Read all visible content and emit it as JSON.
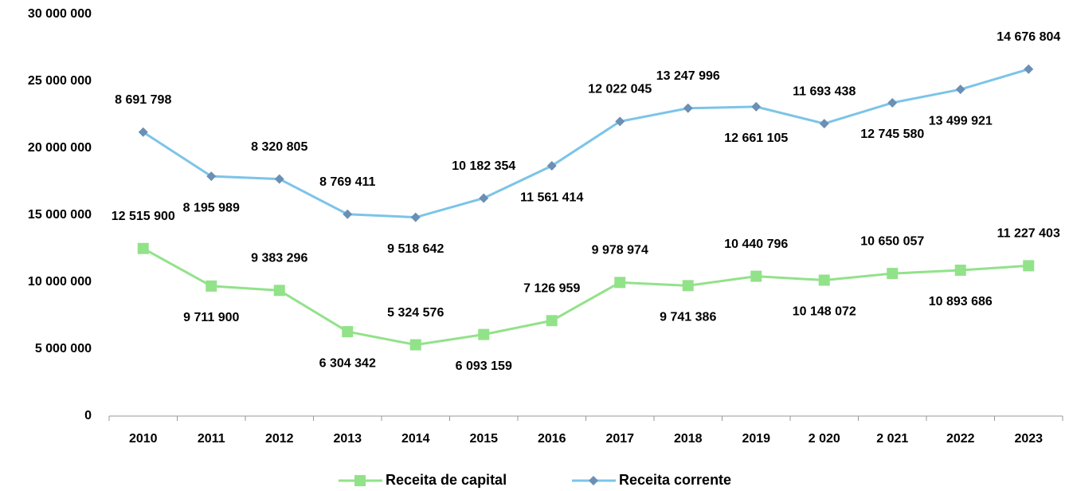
{
  "chart_data": {
    "type": "stacked_line",
    "categories": [
      "2010",
      "2011",
      "2012",
      "2013",
      "2014",
      "2015",
      "2016",
      "2017",
      "2018",
      "2019",
      "2 020",
      "2 021",
      "2022",
      "2023"
    ],
    "ylim": [
      0,
      30000000
    ],
    "yticks": [
      0,
      {
        "value": 5000000,
        "label": "5 000 000"
      },
      {
        "value": 10000000,
        "label": "10 000 000"
      },
      {
        "value": 15000000,
        "label": "15 000 000"
      },
      {
        "value": 20000000,
        "label": "20 000 000"
      },
      {
        "value": 25000000,
        "label": "25 000 000"
      },
      {
        "value": 30000000,
        "label": "30 000 000"
      }
    ],
    "grid": false,
    "legend": "bottom",
    "series": [
      {
        "name": "Receita de capital",
        "color": "#92e28a",
        "marker": "square",
        "values": [
          12515900,
          9711900,
          9383296,
          6304342,
          5324576,
          6093159,
          7126959,
          9978974,
          9741386,
          10440796,
          10148072,
          10650057,
          10893686,
          11227403
        ],
        "value_labels": [
          "12 515 900",
          "9 711 900",
          "9 383 296",
          "6 304 342",
          "5 324 576",
          "6 093 159",
          "7 126 959",
          "9 978 974",
          "9 741 386",
          "10 440 796",
          "10 148 072",
          "10 650 057",
          "10 893 686",
          "11 227 403"
        ]
      },
      {
        "name": "Receita corrente",
        "color": "#7cc4e8",
        "marker": "diamond",
        "values": [
          8691798,
          8195989,
          8320805,
          8769411,
          9518642,
          10182354,
          11561414,
          12022045,
          13247996,
          12661105,
          11693438,
          12745580,
          13499921,
          14676804
        ],
        "value_labels": [
          "8 691 798",
          "8 195 989",
          "8 320 805",
          "8 769 411",
          "9 518 642",
          "10 182 354",
          "11 561 414",
          "12 022 045",
          "13 247 996",
          "12 661 105",
          "11 693 438",
          "12 745 580",
          "13 499 921",
          "14 676 804"
        ]
      }
    ]
  }
}
